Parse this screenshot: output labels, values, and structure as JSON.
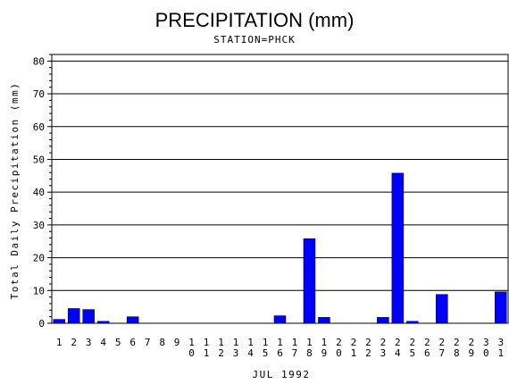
{
  "chart_data": {
    "type": "bar",
    "title": "PRECIPITATION (mm)",
    "subtitle": "STATION=PHCK",
    "xlabel": "JUL 1992",
    "ylabel": "Total Daily Precipitation (mm)",
    "ylim": [
      0,
      82
    ],
    "yticks": [
      0,
      10,
      20,
      30,
      40,
      50,
      60,
      70,
      80
    ],
    "grid": true,
    "bar_color": "#0000ff",
    "categories": [
      "1",
      "2",
      "3",
      "4",
      "5",
      "6",
      "7",
      "8",
      "9",
      "10",
      "11",
      "12",
      "13",
      "14",
      "15",
      "16",
      "17",
      "18",
      "19",
      "20",
      "21",
      "22",
      "23",
      "24",
      "25",
      "26",
      "27",
      "28",
      "29",
      "30",
      "31"
    ],
    "values": [
      1.2,
      4.5,
      4.2,
      0.6,
      0,
      2.0,
      0,
      0,
      0,
      0,
      0,
      0,
      0,
      0,
      0,
      2.3,
      0,
      25.8,
      1.8,
      0,
      0,
      0,
      1.8,
      45.8,
      0.6,
      0,
      8.8,
      0,
      0,
      0,
      9.6
    ]
  }
}
